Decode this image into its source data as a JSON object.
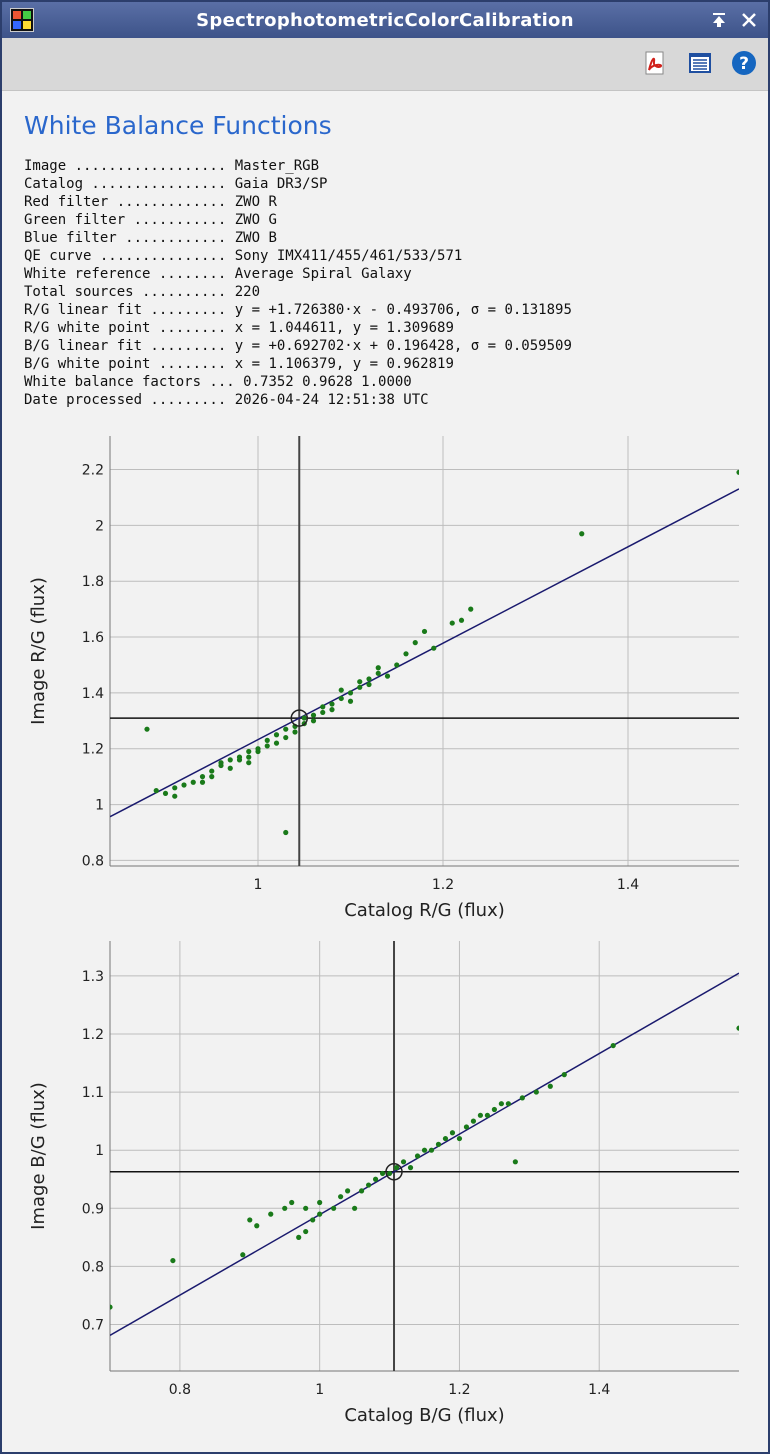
{
  "window": {
    "title": "SpectrophotometricColorCalibration",
    "pin_icon": "pin-icon",
    "close_icon": "close-icon"
  },
  "toolbar": {
    "pdf_icon": "pdf-icon",
    "report_icon": "report-icon",
    "help_icon": "help-icon"
  },
  "report": {
    "heading": "White Balance Functions",
    "rows": [
      {
        "label": "Image ..................",
        "value": "Master_RGB"
      },
      {
        "label": "Catalog ................",
        "value": "Gaia DR3/SP"
      },
      {
        "label": "Red filter .............",
        "value": "ZWO R"
      },
      {
        "label": "Green filter ...........",
        "value": "ZWO G"
      },
      {
        "label": "Blue filter ............",
        "value": "ZWO B"
      },
      {
        "label": "QE curve ...............",
        "value": "Sony IMX411/455/461/533/571"
      },
      {
        "label": "White reference ........",
        "value": "Average Spiral Galaxy"
      },
      {
        "label": "Total sources ..........",
        "value": "220"
      },
      {
        "label": "R/G linear fit .........",
        "value": "y = +1.726380·x - 0.493706, σ = 0.131895"
      },
      {
        "label": "R/G white point ........",
        "value": "x = 1.044611, y = 1.309689"
      },
      {
        "label": "B/G linear fit .........",
        "value": "y = +0.692702·x + 0.196428, σ = 0.059509"
      },
      {
        "label": "B/G white point ........",
        "value": "x = 1.106379, y = 0.962819"
      },
      {
        "label": "White balance factors ...",
        "value": "0.7352 0.9628 1.0000"
      },
      {
        "label": "Date processed .........",
        "value": "2026-04-24 12:51:38 UTC"
      }
    ]
  },
  "colors": {
    "heading": "#2a67cc",
    "point": "#1a7a1a",
    "fit_line": "#1a1a6e",
    "white_point_lines": "#222222",
    "grid": "#bdbdbd"
  },
  "chart_data": [
    {
      "type": "scatter",
      "xlabel": "Catalog R/G (flux)",
      "ylabel": "Image R/G (flux)",
      "xlim": [
        0.84,
        1.52
      ],
      "ylim": [
        0.78,
        2.32
      ],
      "xticks": [
        1,
        1.2,
        1.4
      ],
      "yticks": [
        0.8,
        1,
        1.2,
        1.4,
        1.6,
        1.8,
        2,
        2.2
      ],
      "fit": {
        "slope": 1.72638,
        "intercept": -0.493706
      },
      "white_point": {
        "x": 1.044611,
        "y": 1.309689
      },
      "points": [
        [
          0.88,
          1.27
        ],
        [
          0.89,
          1.05
        ],
        [
          0.9,
          1.04
        ],
        [
          0.91,
          1.06
        ],
        [
          0.91,
          1.03
        ],
        [
          0.92,
          1.07
        ],
        [
          0.93,
          1.08
        ],
        [
          0.94,
          1.08
        ],
        [
          0.94,
          1.1
        ],
        [
          0.95,
          1.1
        ],
        [
          0.95,
          1.12
        ],
        [
          0.96,
          1.14
        ],
        [
          0.96,
          1.15
        ],
        [
          0.97,
          1.13
        ],
        [
          0.97,
          1.16
        ],
        [
          0.98,
          1.16
        ],
        [
          0.98,
          1.17
        ],
        [
          0.99,
          1.17
        ],
        [
          0.99,
          1.15
        ],
        [
          0.99,
          1.19
        ],
        [
          1.0,
          1.19
        ],
        [
          1.0,
          1.2
        ],
        [
          1.01,
          1.21
        ],
        [
          1.01,
          1.23
        ],
        [
          1.02,
          1.22
        ],
        [
          1.02,
          1.25
        ],
        [
          1.03,
          1.24
        ],
        [
          1.03,
          1.27
        ],
        [
          1.03,
          0.9
        ],
        [
          1.04,
          1.28
        ],
        [
          1.04,
          1.26
        ],
        [
          1.05,
          1.29
        ],
        [
          1.05,
          1.31
        ],
        [
          1.06,
          1.32
        ],
        [
          1.06,
          1.3
        ],
        [
          1.07,
          1.33
        ],
        [
          1.07,
          1.35
        ],
        [
          1.08,
          1.34
        ],
        [
          1.08,
          1.36
        ],
        [
          1.09,
          1.38
        ],
        [
          1.09,
          1.41
        ],
        [
          1.1,
          1.4
        ],
        [
          1.1,
          1.37
        ],
        [
          1.11,
          1.42
        ],
        [
          1.11,
          1.44
        ],
        [
          1.12,
          1.45
        ],
        [
          1.12,
          1.43
        ],
        [
          1.13,
          1.47
        ],
        [
          1.13,
          1.49
        ],
        [
          1.14,
          1.46
        ],
        [
          1.15,
          1.5
        ],
        [
          1.16,
          1.54
        ],
        [
          1.17,
          1.58
        ],
        [
          1.18,
          1.62
        ],
        [
          1.19,
          1.56
        ],
        [
          1.21,
          1.65
        ],
        [
          1.22,
          1.66
        ],
        [
          1.23,
          1.7
        ],
        [
          1.35,
          1.97
        ],
        [
          1.52,
          2.19
        ]
      ]
    },
    {
      "type": "scatter",
      "xlabel": "Catalog B/G (flux)",
      "ylabel": "Image B/G (flux)",
      "xlim": [
        0.7,
        1.6
      ],
      "ylim": [
        0.62,
        1.36
      ],
      "xticks": [
        0.8,
        1,
        1.2,
        1.4
      ],
      "yticks": [
        0.7,
        0.8,
        0.9,
        1,
        1.1,
        1.2,
        1.3
      ],
      "fit": {
        "slope": 0.692702,
        "intercept": 0.196428
      },
      "white_point": {
        "x": 1.106379,
        "y": 0.962819
      },
      "points": [
        [
          0.7,
          0.73
        ],
        [
          0.79,
          0.81
        ],
        [
          0.89,
          0.82
        ],
        [
          0.9,
          0.88
        ],
        [
          0.91,
          0.87
        ],
        [
          0.93,
          0.89
        ],
        [
          0.95,
          0.9
        ],
        [
          0.96,
          0.91
        ],
        [
          0.97,
          0.85
        ],
        [
          0.98,
          0.86
        ],
        [
          0.98,
          0.9
        ],
        [
          0.99,
          0.88
        ],
        [
          1.0,
          0.91
        ],
        [
          1.0,
          0.89
        ],
        [
          1.02,
          0.9
        ],
        [
          1.03,
          0.92
        ],
        [
          1.04,
          0.93
        ],
        [
          1.05,
          0.9
        ],
        [
          1.06,
          0.93
        ],
        [
          1.07,
          0.94
        ],
        [
          1.08,
          0.95
        ],
        [
          1.09,
          0.96
        ],
        [
          1.1,
          0.96
        ],
        [
          1.11,
          0.97
        ],
        [
          1.12,
          0.98
        ],
        [
          1.13,
          0.97
        ],
        [
          1.14,
          0.99
        ],
        [
          1.15,
          1.0
        ],
        [
          1.16,
          1.0
        ],
        [
          1.17,
          1.01
        ],
        [
          1.18,
          1.02
        ],
        [
          1.19,
          1.03
        ],
        [
          1.2,
          1.02
        ],
        [
          1.21,
          1.04
        ],
        [
          1.22,
          1.05
        ],
        [
          1.23,
          1.06
        ],
        [
          1.24,
          1.06
        ],
        [
          1.25,
          1.07
        ],
        [
          1.26,
          1.08
        ],
        [
          1.27,
          1.08
        ],
        [
          1.28,
          0.98
        ],
        [
          1.29,
          1.09
        ],
        [
          1.31,
          1.1
        ],
        [
          1.33,
          1.11
        ],
        [
          1.35,
          1.13
        ],
        [
          1.42,
          1.18
        ],
        [
          1.6,
          1.21
        ]
      ]
    }
  ]
}
